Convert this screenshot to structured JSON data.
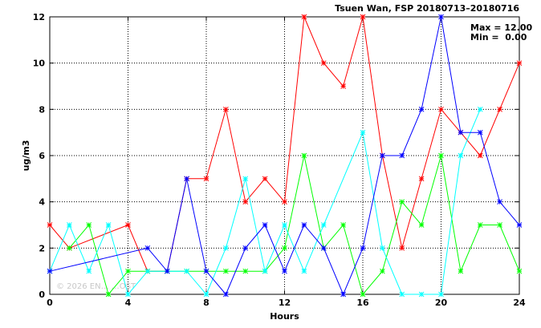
{
  "chart_data": {
    "type": "line",
    "title": "Tsuen Wan, FSP 20180713–20180716",
    "xlabel": "Hours",
    "ylabel": "ug/m3",
    "xlim": [
      0,
      24
    ],
    "ylim": [
      0,
      12
    ],
    "xticks": [
      0,
      4,
      8,
      12,
      16,
      20,
      24
    ],
    "yticks": [
      0,
      2,
      4,
      6,
      8,
      10,
      12
    ],
    "grid": true,
    "stats": {
      "max_label": "Max = 12.00",
      "min_label": "Min =  0.00"
    },
    "watermark": "© 2026 EN… …OST",
    "series": [
      {
        "color": "#ff0000",
        "points": [
          [
            0,
            3
          ],
          [
            1,
            2
          ],
          [
            4,
            3
          ],
          [
            5,
            1
          ],
          [
            6,
            1
          ],
          [
            7,
            5
          ],
          [
            8,
            5
          ],
          [
            9,
            8
          ],
          [
            10,
            4
          ],
          [
            11,
            5
          ],
          [
            12,
            4
          ],
          [
            13,
            12
          ],
          [
            14,
            10
          ],
          [
            15,
            9
          ],
          [
            16,
            12
          ],
          [
            17,
            6
          ],
          [
            18,
            2
          ],
          [
            19,
            5
          ],
          [
            20,
            8
          ],
          [
            21,
            7
          ],
          [
            22,
            6
          ],
          [
            23,
            8
          ],
          [
            24,
            10
          ]
        ]
      },
      {
        "color": "#00ff00",
        "points": [
          [
            1,
            2
          ],
          [
            2,
            3
          ],
          [
            3,
            0
          ],
          [
            4,
            1
          ],
          [
            5,
            1
          ],
          [
            6,
            1
          ],
          [
            7,
            1
          ],
          [
            8,
            1
          ],
          [
            9,
            1
          ],
          [
            10,
            1
          ],
          [
            11,
            1
          ],
          [
            12,
            2
          ],
          [
            13,
            6
          ],
          [
            14,
            2
          ],
          [
            15,
            3
          ],
          [
            16,
            0
          ],
          [
            17,
            1
          ],
          [
            18,
            4
          ],
          [
            19,
            3
          ],
          [
            20,
            6
          ],
          [
            21,
            1
          ],
          [
            22,
            3
          ],
          [
            23,
            3
          ],
          [
            24,
            1
          ]
        ]
      },
      {
        "color": "#00ffff",
        "points": [
          [
            0,
            1
          ],
          [
            1,
            3
          ],
          [
            2,
            1
          ],
          [
            3,
            3
          ],
          [
            4,
            0
          ],
          [
            5,
            1
          ],
          [
            6,
            1
          ],
          [
            7,
            1
          ],
          [
            8,
            0
          ],
          [
            9,
            2
          ],
          [
            10,
            5
          ],
          [
            11,
            1
          ],
          [
            12,
            3
          ],
          [
            13,
            1
          ],
          [
            14,
            3
          ],
          [
            16,
            7
          ],
          [
            17,
            2
          ],
          [
            18,
            0
          ],
          [
            19,
            0
          ],
          [
            20,
            0
          ],
          [
            21,
            6
          ],
          [
            22,
            8
          ]
        ]
      },
      {
        "color": "#0000ff",
        "points": [
          [
            0,
            1
          ],
          [
            5,
            2
          ],
          [
            6,
            1
          ],
          [
            7,
            5
          ],
          [
            8,
            1
          ],
          [
            9,
            0
          ],
          [
            10,
            2
          ],
          [
            11,
            3
          ],
          [
            12,
            1
          ],
          [
            13,
            3
          ],
          [
            14,
            2
          ],
          [
            15,
            0
          ],
          [
            16,
            2
          ],
          [
            17,
            6
          ],
          [
            18,
            6
          ],
          [
            19,
            8
          ],
          [
            20,
            12
          ],
          [
            21,
            7
          ],
          [
            22,
            7
          ],
          [
            23,
            4
          ],
          [
            24,
            3
          ]
        ]
      }
    ]
  }
}
